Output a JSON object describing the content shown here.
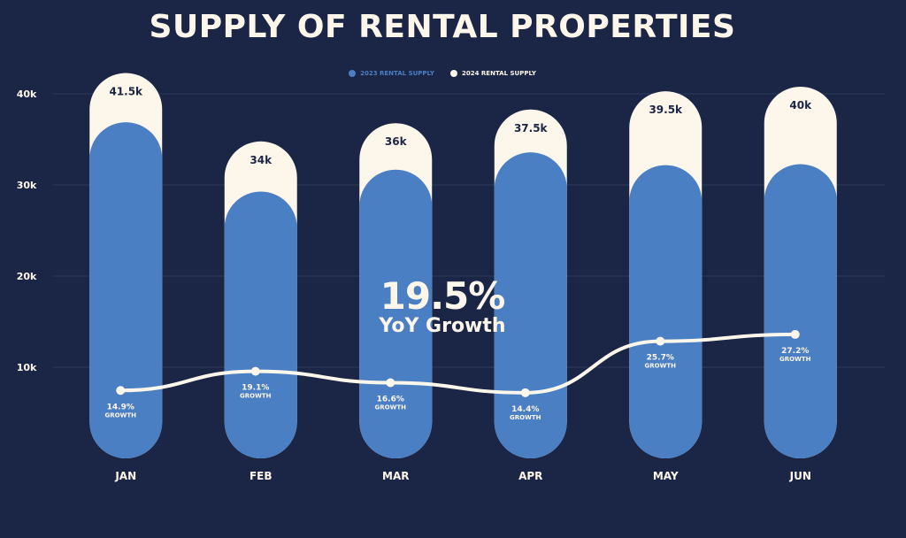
{
  "colors": {
    "background": "#1b2545",
    "series_2023": "#4a7fc3",
    "series_2024": "#fdf6ea",
    "line": "#fdf6ea",
    "grid": "#2e3a5c"
  },
  "callout": {
    "value": "19.5%",
    "text": "YoY Growth"
  },
  "chart_data": {
    "type": "bar",
    "title": "SUPPLY OF RENTAL PROPERTIES",
    "categories": [
      "JAN",
      "FEB",
      "MAR",
      "APR",
      "MAY",
      "JUN"
    ],
    "series": [
      {
        "name": "2023 RENTAL SUPPLY",
        "values": [
          36.1,
          28.5,
          30.9,
          32.8,
          31.4,
          31.5
        ]
      },
      {
        "name": "2024 RENTAL SUPPLY",
        "values": [
          41.5,
          34,
          36,
          37.5,
          39.5,
          40
        ],
        "data_labels": [
          "41.5k",
          "34k",
          "36k",
          "37.5k",
          "39.5k",
          "40k"
        ]
      }
    ],
    "growth": {
      "values": [
        14.9,
        19.1,
        16.6,
        14.4,
        25.7,
        27.2
      ],
      "labels": [
        "14.9%",
        "19.1%",
        "16.6%",
        "14.4%",
        "25.7%",
        "27.2%"
      ],
      "sublabel": "GROWTH"
    },
    "y_ticks": [
      10,
      20,
      30,
      40
    ],
    "y_tick_labels": [
      "10k",
      "20k",
      "30k",
      "40k"
    ],
    "ylim": [
      0,
      40
    ],
    "grid": true,
    "legend_position": "top-center"
  }
}
